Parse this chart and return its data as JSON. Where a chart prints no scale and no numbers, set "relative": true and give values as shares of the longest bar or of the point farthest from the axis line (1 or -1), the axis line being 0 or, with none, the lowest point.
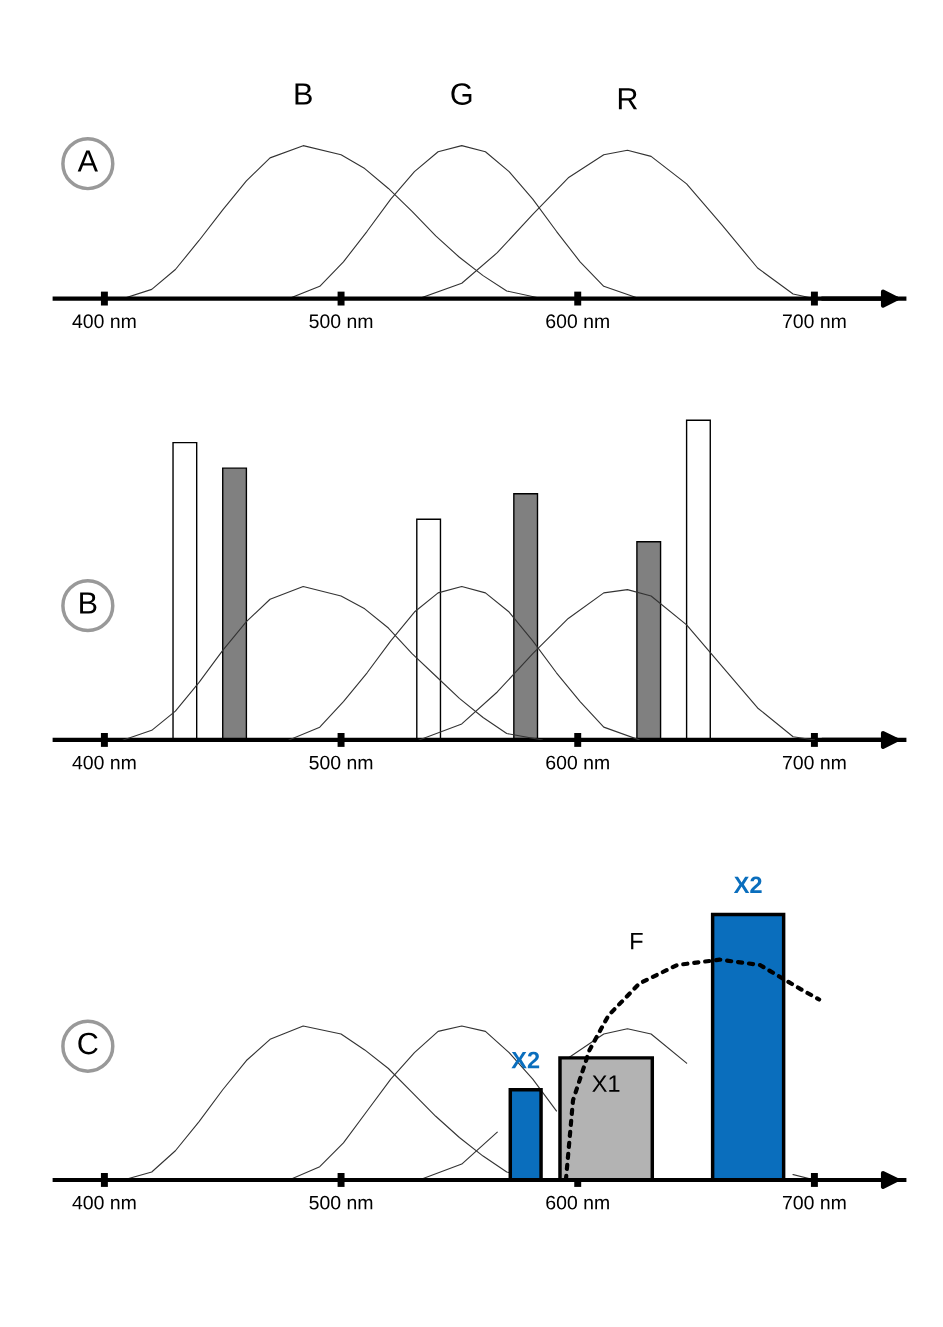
{
  "chart_data": [
    {
      "type": "line",
      "title": "A",
      "relative": true,
      "xlim": [
        379,
        738
      ],
      "xticks": [
        {
          "value": 400,
          "label": "400 nm"
        },
        {
          "value": 500,
          "label": "500 nm"
        },
        {
          "value": 600,
          "label": "600 nm"
        },
        {
          "value": 700,
          "label": "700 nm"
        }
      ],
      "series": [
        {
          "name": "B",
          "color": "#333333",
          "x": [
            408,
            420,
            430,
            440,
            450,
            460,
            470,
            484,
            500,
            510,
            520,
            530,
            540,
            550,
            560,
            570,
            585
          ],
          "values": [
            0,
            0.06,
            0.19,
            0.38,
            0.58,
            0.77,
            0.92,
            1,
            0.94,
            0.85,
            0.72,
            0.57,
            0.41,
            0.27,
            0.15,
            0.05,
            0
          ]
        },
        {
          "name": "G",
          "color": "#333333",
          "x": [
            478,
            491,
            501,
            511,
            521,
            531,
            541,
            551,
            561,
            571,
            581,
            591,
            601,
            611,
            626
          ],
          "values": [
            0,
            0.08,
            0.24,
            0.44,
            0.65,
            0.83,
            0.96,
            1,
            0.96,
            0.83,
            0.65,
            0.44,
            0.24,
            0.08,
            0
          ]
        },
        {
          "name": "R",
          "color": "#333333",
          "x": [
            533,
            551,
            566,
            581,
            596,
            611,
            621,
            631,
            646,
            661,
            676,
            691,
            700
          ],
          "values": [
            0,
            0.1,
            0.3,
            0.55,
            0.79,
            0.94,
            0.97,
            0.93,
            0.75,
            0.48,
            0.2,
            0.03,
            0
          ]
        }
      ]
    },
    {
      "type": "line",
      "title": "B",
      "relative": true,
      "xlim": [
        379,
        738
      ],
      "xticks": [
        {
          "value": 400,
          "label": "400 nm"
        },
        {
          "value": 500,
          "label": "500 nm"
        },
        {
          "value": 600,
          "label": "600 nm"
        },
        {
          "value": 700,
          "label": "700 nm"
        }
      ],
      "series": [
        {
          "type": "bar",
          "colors": [
            "#ffffff",
            "#808080",
            "#ffffff",
            "#808080",
            "#808080",
            "#ffffff"
          ],
          "x": [
            434,
            455,
            537,
            578,
            630,
            651
          ],
          "values": [
            0.93,
            0.85,
            0.69,
            0.77,
            0.62,
            1
          ]
        },
        {
          "color": "#333333",
          "x": [
            408,
            420,
            430,
            440,
            450,
            460,
            470,
            484,
            500,
            510,
            520,
            530,
            540,
            550,
            560,
            570,
            585
          ],
          "values": [
            0,
            0.03,
            0.09,
            0.18,
            0.28,
            0.37,
            0.44,
            0.48,
            0.45,
            0.41,
            0.35,
            0.27,
            0.2,
            0.13,
            0.07,
            0.02,
            0
          ]
        },
        {
          "color": "#333333",
          "x": [
            478,
            491,
            501,
            511,
            521,
            531,
            541,
            551,
            561,
            571,
            581,
            591,
            601,
            611,
            626
          ],
          "values": [
            0,
            0.04,
            0.12,
            0.21,
            0.31,
            0.4,
            0.46,
            0.48,
            0.46,
            0.4,
            0.31,
            0.21,
            0.12,
            0.04,
            0
          ]
        },
        {
          "color": "#333333",
          "x": [
            533,
            551,
            566,
            581,
            596,
            611,
            621,
            631,
            646,
            661,
            676,
            691,
            700
          ],
          "values": [
            0,
            0.05,
            0.15,
            0.27,
            0.38,
            0.46,
            0.47,
            0.45,
            0.36,
            0.23,
            0.1,
            0.01,
            0
          ]
        }
      ]
    },
    {
      "type": "line",
      "title": "C",
      "relative": true,
      "xlim": [
        379,
        738
      ],
      "xticks": [
        {
          "value": 400,
          "label": "400 nm"
        },
        {
          "value": 500,
          "label": "500 nm"
        },
        {
          "value": 600,
          "label": "600 nm"
        },
        {
          "value": 700,
          "label": "700 nm"
        }
      ],
      "series": [
        {
          "color": "#333333",
          "x": [
            408,
            420,
            430,
            440,
            450,
            460,
            470,
            484,
            500,
            510,
            520,
            530,
            540,
            550,
            560,
            570,
            585
          ],
          "values": [
            0,
            0.03,
            0.11,
            0.22,
            0.34,
            0.45,
            0.53,
            0.58,
            0.55,
            0.49,
            0.42,
            0.33,
            0.24,
            0.16,
            0.09,
            0.03,
            0
          ]
        },
        {
          "color": "#333333",
          "x": [
            478,
            491,
            501,
            511,
            521,
            531,
            541,
            551,
            561,
            571,
            581,
            591
          ],
          "values": [
            0,
            0.05,
            0.14,
            0.26,
            0.38,
            0.48,
            0.56,
            0.58,
            0.56,
            0.48,
            0.38,
            0.26
          ]
        },
        {
          "color": "#333333",
          "x": [
            533,
            551,
            566,
            581,
            596,
            611,
            621,
            631,
            646,
            661,
            676,
            691,
            700
          ],
          "values": [
            0,
            0.06,
            0.18,
            null,
            0.46,
            0.55,
            0.57,
            0.55,
            0.44,
            null,
            null,
            0.02,
            0
          ]
        },
        {
          "type": "bar",
          "color": "#0a6ebd",
          "x": [
            578,
            672
          ],
          "values": [
            0.34,
            1
          ]
        },
        {
          "type": "bar",
          "name": "X1",
          "color": "#b3b3b3",
          "x": [
            612
          ],
          "values": [
            0.46
          ]
        },
        {
          "name": "F",
          "color": "#000000",
          "line_style": "dotted",
          "x": [
            595,
            598,
            605,
            613,
            626,
            642,
            660,
            677,
            694,
            702
          ],
          "values": [
            0,
            0.3,
            0.49,
            0.62,
            0.74,
            0.81,
            0.83,
            0.81,
            0.72,
            0.68
          ]
        }
      ],
      "annotations": [
        {
          "text": "X2",
          "x": 578,
          "y": 0.34
        },
        {
          "text": "X2",
          "x": 672,
          "y": 1
        }
      ]
    }
  ]
}
